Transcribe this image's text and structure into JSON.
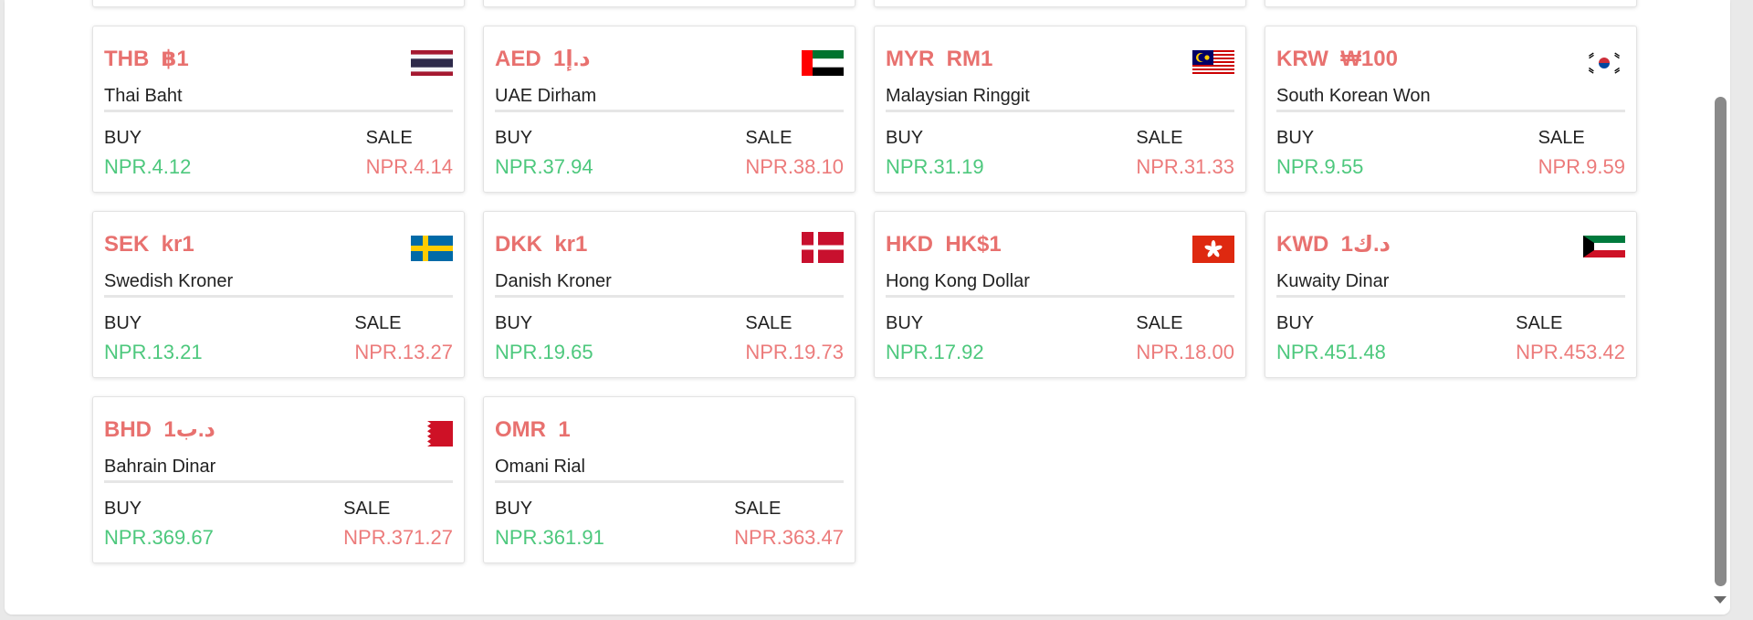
{
  "labels": {
    "buy": "BUY",
    "sale": "SALE"
  },
  "currencies": [
    {
      "code": "THB  ฿1",
      "name": "Thai Baht",
      "buy": "NPR.4.12",
      "sale": "NPR.4.14",
      "flag": "thailand-flag-icon"
    },
    {
      "code": "AED  د.إ1",
      "name": "UAE Dirham",
      "buy": "NPR.37.94",
      "sale": "NPR.38.10",
      "flag": "uae-flag-icon"
    },
    {
      "code": "MYR  RM1",
      "name": "Malaysian Ringgit",
      "buy": "NPR.31.19",
      "sale": "NPR.31.33",
      "flag": "malaysia-flag-icon"
    },
    {
      "code": "KRW  ₩100",
      "name": "South Korean Won",
      "buy": "NPR.9.55",
      "sale": "NPR.9.59",
      "flag": "south-korea-flag-icon"
    },
    {
      "code": "SEK  kr1",
      "name": "Swedish Kroner",
      "buy": "NPR.13.21",
      "sale": "NPR.13.27",
      "flag": "sweden-flag-icon"
    },
    {
      "code": "DKK  kr1",
      "name": "Danish Kroner",
      "buy": "NPR.19.65",
      "sale": "NPR.19.73",
      "flag": "denmark-flag-icon"
    },
    {
      "code": "HKD  HK$1",
      "name": "Hong Kong Dollar",
      "buy": "NPR.17.92",
      "sale": "NPR.18.00",
      "flag": "hong-kong-flag-icon"
    },
    {
      "code": "KWD  د.ك1",
      "name": "Kuwaity Dinar",
      "buy": "NPR.451.48",
      "sale": "NPR.453.42",
      "flag": "kuwait-flag-icon"
    },
    {
      "code": "BHD  د.ب1",
      "name": "Bahrain Dinar",
      "buy": "NPR.369.67",
      "sale": "NPR.371.27",
      "flag": "bahrain-flag-icon"
    },
    {
      "code": "OMR  1",
      "name": "Omani Rial",
      "buy": "NPR.361.91",
      "sale": "NPR.363.47",
      "flag": ""
    }
  ]
}
